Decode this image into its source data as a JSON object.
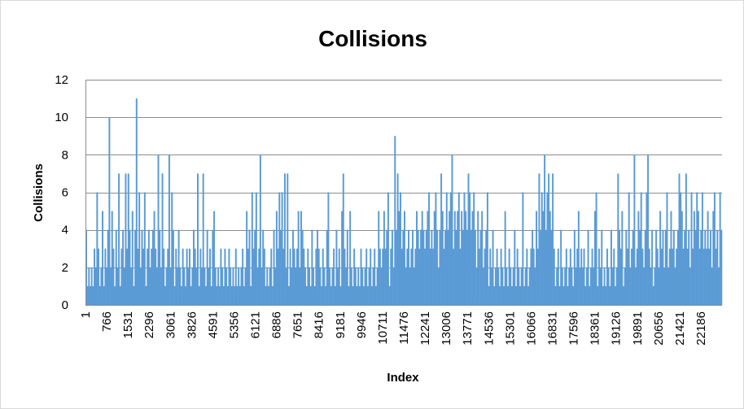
{
  "chart_data": {
    "type": "bar",
    "title": "Collisions",
    "xlabel": "Index",
    "ylabel": "Collisions",
    "ylim": [
      0,
      12
    ],
    "y_ticks": [
      0,
      2,
      4,
      6,
      8,
      10,
      12
    ],
    "x_tick_labels": [
      "1",
      "766",
      "1531",
      "2296",
      "3061",
      "3826",
      "4591",
      "5356",
      "6121",
      "6886",
      "7651",
      "8416",
      "9181",
      "9946",
      "10711",
      "11476",
      "12241",
      "13006",
      "13771",
      "14536",
      "15301",
      "16066",
      "16831",
      "17596",
      "18361",
      "19126",
      "19891",
      "20656",
      "21421",
      "22186"
    ],
    "x_range": [
      1,
      22950
    ],
    "grid": true,
    "legend": "none",
    "bar_color": "#5b9bd5",
    "approximate": true,
    "series": [
      {
        "x_start": 1,
        "x_step": 51,
        "values": [
          4,
          1,
          2,
          1,
          2,
          1,
          3,
          2,
          6,
          3,
          1,
          2,
          5,
          1,
          3,
          2,
          4,
          10,
          2,
          5,
          3,
          1,
          4,
          2,
          7,
          1,
          3,
          4,
          2,
          7,
          3,
          7,
          4,
          2,
          5,
          1,
          4,
          11,
          3,
          6,
          2,
          4,
          3,
          6,
          1,
          3,
          4,
          2,
          3,
          4,
          5,
          3,
          2,
          8,
          4,
          2,
          7,
          3,
          1,
          2,
          3,
          8,
          2,
          6,
          4,
          1,
          3,
          2,
          4,
          2,
          1,
          3,
          2,
          1,
          3,
          2,
          3,
          1,
          2,
          4,
          3,
          2,
          7,
          1,
          3,
          2,
          7,
          2,
          1,
          4,
          2,
          3,
          1,
          4,
          5,
          2,
          1,
          2,
          1,
          3,
          2,
          1,
          3,
          2,
          1,
          3,
          2,
          1,
          2,
          1,
          3,
          1,
          2,
          1,
          2,
          3,
          1,
          2,
          5,
          3,
          4,
          1,
          6,
          3,
          4,
          6,
          2,
          3,
          8,
          2,
          4,
          3,
          1,
          2,
          1,
          2,
          3,
          1,
          4,
          2,
          5,
          3,
          6,
          4,
          6,
          3,
          7,
          2,
          7,
          1,
          3,
          2,
          4,
          3,
          2,
          3,
          5,
          2,
          5,
          4,
          3,
          2,
          1,
          3,
          2,
          1,
          4,
          2,
          1,
          3,
          4,
          3,
          2,
          1,
          3,
          2,
          1,
          4,
          6,
          2,
          1,
          2,
          3,
          1,
          4,
          2,
          3,
          1,
          5,
          7,
          3,
          2,
          4,
          1,
          5,
          2,
          1,
          3,
          2,
          1,
          2,
          1,
          3,
          2,
          1,
          2,
          3,
          1,
          2,
          3,
          1,
          2,
          3,
          1,
          2,
          5,
          3,
          2,
          3,
          5,
          3,
          4,
          6,
          1,
          3,
          4,
          2,
          9,
          4,
          7,
          5,
          6,
          3,
          4,
          5,
          2,
          3,
          4,
          2,
          3,
          4,
          2,
          3,
          5,
          4,
          3,
          4,
          5,
          4,
          3,
          4,
          5,
          6,
          3,
          4,
          3,
          5,
          6,
          4,
          2,
          4,
          7,
          5,
          3,
          4,
          6,
          4,
          5,
          6,
          8,
          3,
          5,
          4,
          5,
          6,
          3,
          5,
          4,
          6,
          5,
          4,
          7,
          6,
          4,
          5,
          6,
          4,
          2,
          5,
          3,
          4,
          5,
          2,
          3,
          4,
          6,
          1,
          3,
          2,
          4,
          1,
          2,
          3,
          2,
          1,
          3,
          2,
          1,
          5,
          2,
          1,
          3,
          2,
          1,
          2,
          4,
          1,
          3,
          2,
          1,
          2,
          6,
          1,
          2,
          3,
          1,
          2,
          3,
          4,
          3,
          2,
          5,
          3,
          7,
          4,
          6,
          5,
          8,
          4,
          6,
          7,
          5,
          4,
          7,
          3,
          1,
          2,
          3,
          1,
          4,
          2,
          1,
          2,
          3,
          1,
          2,
          3,
          2,
          1,
          4,
          2,
          3,
          5,
          2,
          3,
          2,
          3,
          1,
          2,
          4,
          1,
          2,
          3,
          2,
          5,
          6,
          1,
          3,
          2,
          4,
          1,
          2,
          1,
          3,
          2,
          1,
          4,
          2,
          3,
          1,
          2,
          7,
          4,
          3,
          5,
          1,
          2,
          4,
          3,
          6,
          2,
          3,
          4,
          8,
          2,
          3,
          5,
          4,
          6,
          3,
          2,
          4,
          6,
          8,
          3,
          2,
          4,
          1,
          2,
          4,
          3,
          2,
          5,
          3,
          4,
          2,
          4,
          6,
          2,
          3,
          5,
          3,
          4,
          2,
          3,
          4,
          7,
          6,
          5,
          3,
          4,
          7,
          3,
          4,
          2,
          6,
          3,
          5,
          4,
          6,
          5,
          3,
          4,
          6,
          3,
          4,
          3,
          5,
          3,
          4,
          2,
          5,
          6,
          3,
          4,
          2,
          6,
          4
        ]
      }
    ]
  }
}
